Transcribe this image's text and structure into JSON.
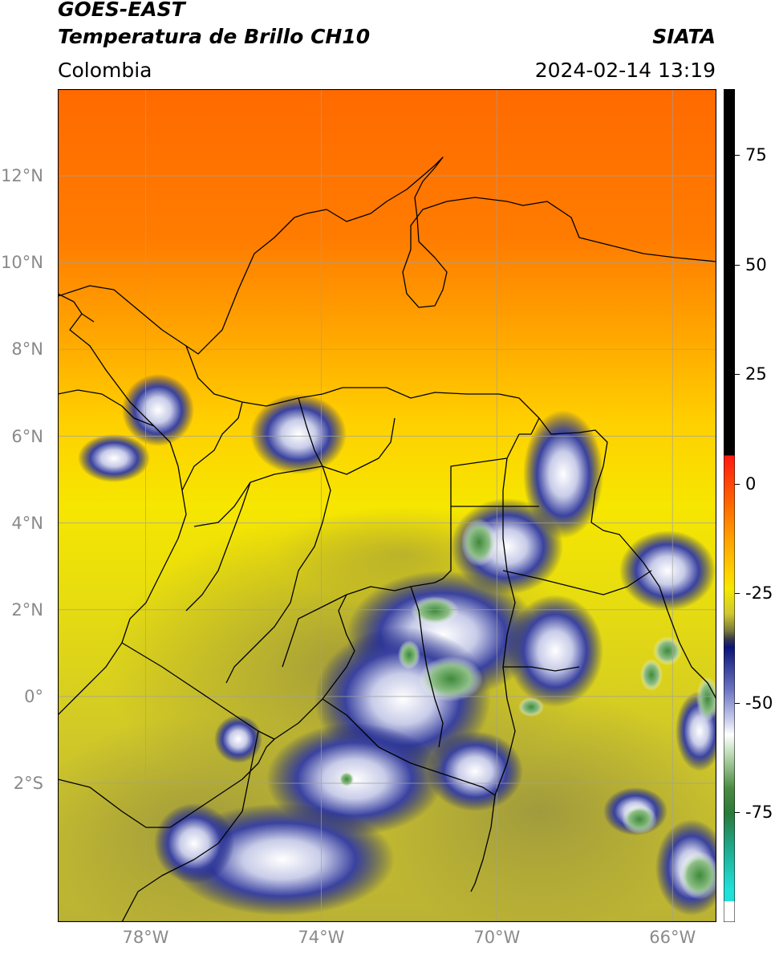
{
  "header": {
    "title_line1": "GOES-EAST",
    "title_line2": "Temperatura de Brillo CH10",
    "brand": "SIATA",
    "region": "Colombia",
    "timestamp": "2024-02-14 13:19"
  },
  "map": {
    "latitude_labels": [
      {
        "label": "12°N",
        "lat": 12
      },
      {
        "label": "10°N",
        "lat": 10
      },
      {
        "label": "8°N",
        "lat": 8
      },
      {
        "label": "6°N",
        "lat": 6
      },
      {
        "label": "4°N",
        "lat": 4
      },
      {
        "label": "2°N",
        "lat": 2
      },
      {
        "label": "0°",
        "lat": 0
      },
      {
        "label": "2°S",
        "lat": -2
      }
    ],
    "longitude_labels": [
      {
        "label": "78°W",
        "lon": -78
      },
      {
        "label": "74°W",
        "lon": -74
      },
      {
        "label": "70°W",
        "lon": -70
      },
      {
        "label": "66°W",
        "lon": -66
      }
    ],
    "lat_range": [
      -5.2,
      14.0
    ],
    "lon_range": [
      -80.0,
      -65.0
    ],
    "grid": true
  },
  "colorbar": {
    "tick_labels": [
      {
        "label": "75",
        "value": 75
      },
      {
        "label": "50",
        "value": 50
      },
      {
        "label": "25",
        "value": 25
      },
      {
        "label": "0",
        "value": 0
      },
      {
        "label": "-25",
        "value": -25
      },
      {
        "label": "-50",
        "value": -50
      },
      {
        "label": "-75",
        "value": -75
      }
    ],
    "range": [
      -100,
      90
    ],
    "colors": {
      "black": "#000000",
      "red": "#e8231a",
      "orange": "#ff8c00",
      "yellow": "#f5e500",
      "olive": "#8a8a3a",
      "navy": "#0a1478",
      "white": "#ffffff",
      "green": "#3a7a30",
      "cyan": "#20d8d0"
    }
  }
}
